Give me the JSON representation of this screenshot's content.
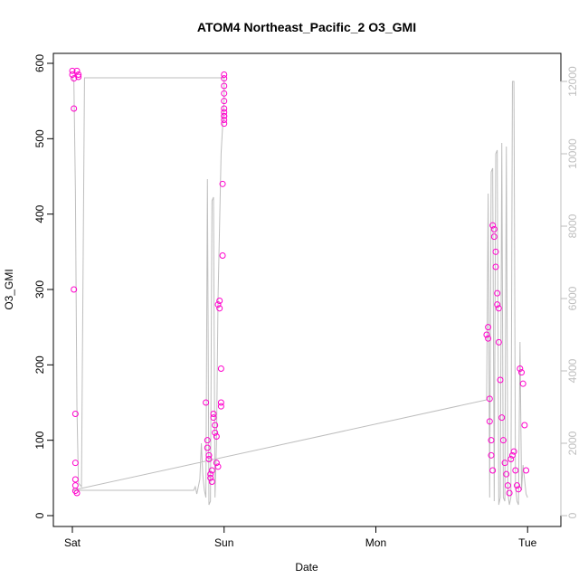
{
  "chart_data": {
    "type": "scatter",
    "title": "ATOM4 Northeast_Pacific_2 O3_GMI",
    "xlabel": "Date",
    "ylabel": "O3_GMI",
    "xlim": [
      0,
      3.1
    ],
    "ylim": [
      0,
      600
    ],
    "y2lim": [
      0,
      12500
    ],
    "x_ticks": [
      {
        "value": 0,
        "label": "Sat"
      },
      {
        "value": 1,
        "label": "Sun"
      },
      {
        "value": 2,
        "label": "Mon"
      },
      {
        "value": 3,
        "label": "Tue"
      }
    ],
    "y_ticks": [
      0,
      100,
      200,
      300,
      400,
      500,
      600
    ],
    "y2_ticks": [
      0,
      2000,
      4000,
      6000,
      8000,
      10000,
      12000
    ],
    "grid": false,
    "legend": "none",
    "series": [
      {
        "axis": "right",
        "kind": "line",
        "color": "#bebebe",
        "x": [
          0.0,
          0.01,
          0.02,
          0.03,
          0.04,
          0.06,
          0.08,
          1.0,
          1.0,
          0.98,
          0.96,
          0.95,
          0.94,
          0.93,
          0.92,
          0.91,
          0.9,
          0.89,
          0.88,
          0.87,
          0.86,
          0.85,
          0.84,
          0.83,
          0.82,
          0.81,
          0.8,
          0.0,
          2.73,
          2.74,
          2.75,
          2.76,
          2.77,
          2.78,
          2.79,
          2.8,
          2.81,
          2.82,
          2.83,
          2.84,
          2.85,
          2.86,
          2.87,
          2.88,
          2.89,
          2.9,
          2.91,
          2.92,
          2.93,
          2.94,
          2.95,
          2.96,
          2.97,
          2.98,
          2.99,
          3.0
        ],
        "y": [
          12100,
          12000,
          9000,
          3000,
          900,
          800,
          12100,
          12100,
          11500,
          10000,
          6000,
          2000,
          500,
          8800,
          8700,
          400,
          300,
          9300,
          500,
          700,
          1100,
          2000,
          1000,
          800,
          600,
          800,
          700,
          700,
          3200,
          8900,
          500,
          9500,
          9600,
          400,
          10000,
          10100,
          300,
          500,
          10300,
          500,
          400,
          10200,
          600,
          300,
          500,
          12000,
          12000,
          800,
          400,
          300,
          4800,
          700,
          1400,
          1000,
          600,
          500
        ]
      },
      {
        "axis": "left",
        "kind": "points",
        "color": "#ff00cc",
        "x": [
          0.0,
          0.0,
          0.01,
          0.01,
          0.01,
          0.02,
          0.02,
          0.02,
          0.02,
          0.02,
          0.03,
          0.03,
          0.04,
          0.04,
          0.88,
          0.89,
          0.89,
          0.9,
          0.9,
          0.91,
          0.91,
          0.92,
          0.92,
          0.93,
          0.93,
          0.94,
          0.94,
          0.95,
          0.95,
          0.96,
          0.96,
          0.97,
          0.97,
          0.98,
          0.98,
          0.98,
          0.99,
          0.99,
          1.0,
          1.0,
          1.0,
          1.0,
          1.0,
          1.0,
          1.0,
          1.0,
          1.0,
          1.0,
          1.0,
          2.73,
          2.74,
          2.74,
          2.75,
          2.75,
          2.76,
          2.76,
          2.77,
          2.77,
          2.78,
          2.78,
          2.79,
          2.79,
          2.8,
          2.8,
          2.81,
          2.81,
          2.82,
          2.83,
          2.84,
          2.85,
          2.86,
          2.87,
          2.88,
          2.89,
          2.9,
          2.91,
          2.92,
          2.93,
          2.94,
          2.95,
          2.96,
          2.97,
          2.98,
          2.99
        ],
        "y": [
          590,
          585,
          580,
          540,
          300,
          135,
          70,
          48,
          40,
          33,
          30,
          590,
          585,
          582,
          150,
          100,
          90,
          80,
          75,
          55,
          50,
          60,
          45,
          135,
          130,
          120,
          110,
          105,
          70,
          65,
          280,
          285,
          275,
          195,
          150,
          145,
          440,
          345,
          585,
          580,
          570,
          560,
          550,
          540,
          530,
          525,
          520,
          530,
          535,
          240,
          250,
          235,
          155,
          125,
          100,
          80,
          60,
          385,
          380,
          370,
          350,
          330,
          280,
          295,
          275,
          230,
          180,
          130,
          100,
          70,
          55,
          40,
          30,
          75,
          80,
          85,
          60,
          40,
          35,
          195,
          190,
          175,
          120,
          60
        ]
      }
    ]
  }
}
